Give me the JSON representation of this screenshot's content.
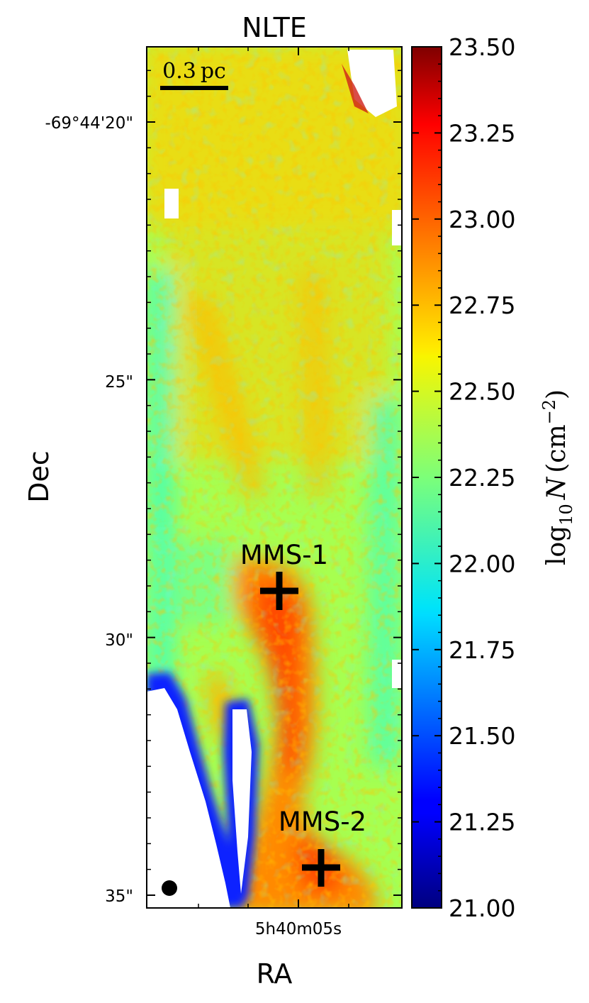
{
  "chart_data": {
    "type": "heatmap",
    "title": "NLTE",
    "xlabel": "RA",
    "ylabel": "Dec",
    "x_ticks": [
      {
        "label": "5h40m05s"
      }
    ],
    "y_ticks": [
      {
        "label": "-69°44'20\"",
        "dec_arcsec_offset": 20
      },
      {
        "label": "25\"",
        "dec_arcsec_offset": 25
      },
      {
        "label": "30\"",
        "dec_arcsec_offset": 30
      },
      {
        "label": "35\"",
        "dec_arcsec_offset": 35
      }
    ],
    "colorbar": {
      "label_prefix": "log",
      "label_sub": "10",
      "label_var": "N",
      "label_unit": "(cm",
      "label_exp": "−2",
      "label_close": ")",
      "range": [
        21.0,
        23.5
      ],
      "colormap": "jet",
      "tick_values": [
        21.0,
        21.25,
        21.5,
        21.75,
        22.0,
        22.25,
        22.5,
        22.75,
        23.0,
        23.25,
        23.5
      ],
      "tick_labels": [
        "21.00",
        "21.25",
        "21.50",
        "21.75",
        "22.00",
        "22.25",
        "22.50",
        "22.75",
        "23.00",
        "23.25",
        "23.50"
      ]
    },
    "scalebar": {
      "value": "0.3",
      "unit": "pc"
    },
    "sources": [
      {
        "name": "MMS-1",
        "marker": "plus"
      },
      {
        "name": "MMS-2",
        "marker": "plus"
      }
    ],
    "beam": {
      "shape": "filled-ellipse",
      "color": "#000000"
    },
    "map_description_levels": {
      "background": 22.3,
      "filament_peak": 23.1,
      "mms1_peak": 23.15,
      "mms2_peak": 23.15,
      "blank_masked": "white"
    }
  }
}
